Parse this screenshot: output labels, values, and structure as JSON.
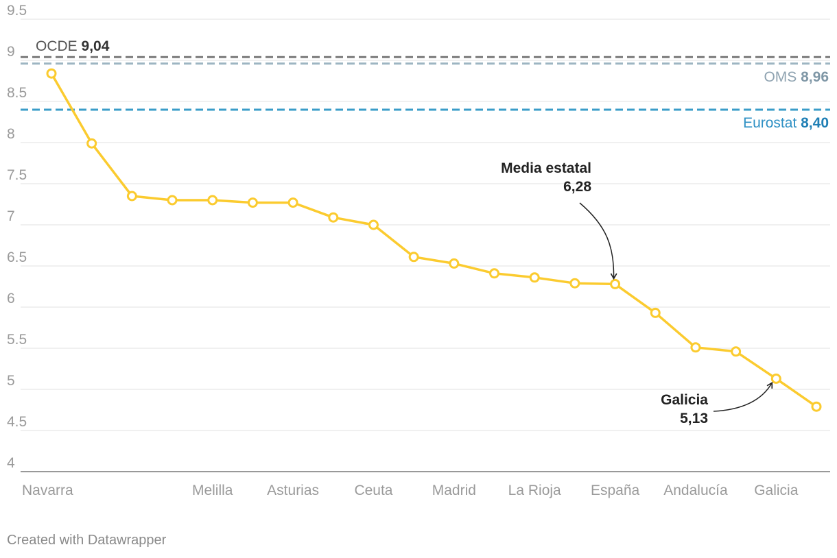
{
  "chart_data": {
    "type": "line",
    "categories": [
      "Navarra",
      "",
      "",
      "",
      "Melilla",
      "",
      "Asturias",
      "",
      "Ceuta",
      "",
      "Madrid",
      "",
      "La Rioja",
      "",
      "España",
      "",
      "Andalucía",
      "",
      "Galicia",
      ""
    ],
    "values": [
      8.84,
      7.99,
      7.35,
      7.3,
      7.3,
      7.27,
      7.27,
      7.09,
      7.0,
      6.61,
      6.53,
      6.41,
      6.36,
      6.29,
      6.28,
      5.93,
      5.51,
      5.46,
      5.13,
      4.79
    ],
    "ylim": [
      4,
      9.5
    ],
    "yticks": [
      "4",
      "4.5",
      "5",
      "5.5",
      "6",
      "6.5",
      "7",
      "7.5",
      "8",
      "8.5",
      "9",
      "9.5"
    ],
    "grid": true,
    "line_color": "#fbcb2f",
    "reference_lines": [
      {
        "name": "OCDE",
        "value": 9.04,
        "label": "9,04",
        "color": "#7a7a7a",
        "label_color": "#555555",
        "value_color": "#333333"
      },
      {
        "name": "OMS",
        "value": 8.96,
        "label": "8,96",
        "color": "#9db5c2",
        "label_color": "#8fa3b1",
        "value_color": "#7f97a6"
      },
      {
        "name": "Eurostat",
        "value": 8.4,
        "label": "8,40",
        "color": "#3a9cc8",
        "label_color": "#2e90c4",
        "value_color": "#1f7fb5"
      }
    ],
    "annotations": [
      {
        "title": "Media estatal",
        "value_text": "6,28",
        "category_index": 14
      },
      {
        "title": "Galicia",
        "value_text": "5,13",
        "category_index": 18
      }
    ]
  },
  "footer": {
    "credit": "Created with Datawrapper"
  }
}
